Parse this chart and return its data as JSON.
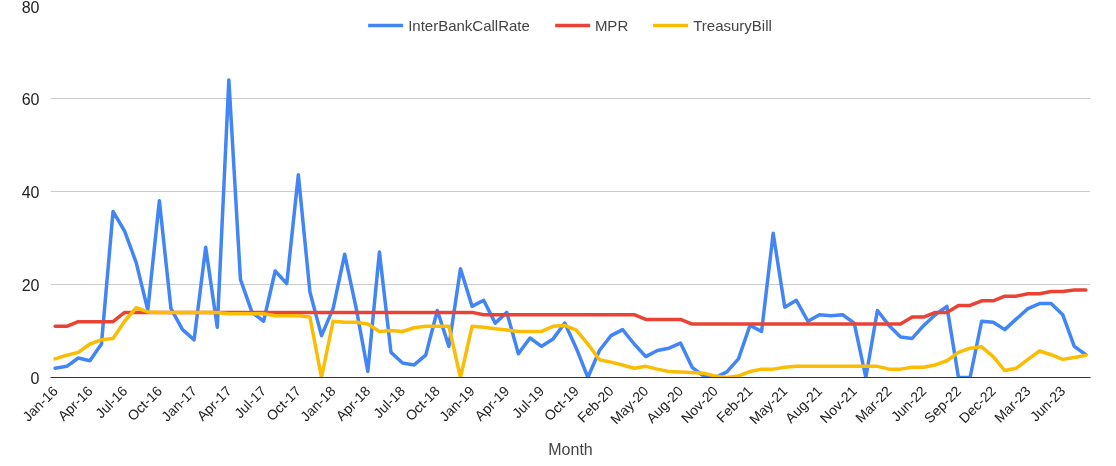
{
  "chart_data": {
    "type": "line",
    "xlabel": "Month",
    "categories": [
      "Jan-16",
      null,
      null,
      "Apr-16",
      null,
      null,
      "Jul-16",
      null,
      null,
      "Oct-16",
      null,
      null,
      "Jan-17",
      null,
      null,
      "Apr-17",
      null,
      null,
      "Jul-17",
      null,
      null,
      "Oct-17",
      null,
      null,
      "Jan-18",
      null,
      null,
      "Apr-18",
      null,
      null,
      "Jul-18",
      null,
      null,
      "Oct-18",
      null,
      null,
      "Jan-19",
      null,
      null,
      "Apr-19",
      null,
      null,
      "Jul-19",
      null,
      null,
      "Oct-19",
      null,
      null,
      "Feb-20",
      null,
      null,
      "May-20",
      null,
      null,
      "Aug-20",
      null,
      null,
      "Nov-20",
      null,
      null,
      "Feb-21",
      null,
      null,
      "May-21",
      null,
      null,
      "Aug-21",
      null,
      null,
      "Nov-21",
      null,
      null,
      "Mar-22",
      null,
      null,
      "Jun-22",
      null,
      null,
      "Sep-22",
      null,
      null,
      "Dec-22",
      null,
      null,
      "Mar-23",
      null,
      null,
      "Jun-23",
      null,
      null
    ],
    "series": [
      {
        "name": "InterBankCallRate",
        "color": "#4285f4",
        "values": [
          2,
          2.4,
          4.2,
          3.6,
          7.2,
          35.7,
          31.5,
          24.7,
          14.5,
          38,
          14.8,
          10.3,
          8.1,
          28,
          10.8,
          64,
          21.1,
          14,
          12.1,
          22.9,
          20.2,
          43.6,
          18.4,
          9,
          14.8,
          26.5,
          14.8,
          1.3,
          27,
          5.4,
          3.1,
          2.7,
          4.8,
          14.4,
          6.7,
          23.4,
          15.3,
          16.6,
          11.7,
          14,
          5.1,
          8.5,
          6.7,
          8.3,
          11.7,
          6.3,
          0,
          5.8,
          9,
          10.3,
          7.2,
          4.5,
          5.8,
          6.3,
          7.4,
          2.2,
          0.3,
          0,
          1.2,
          4,
          11.2,
          9.9,
          31,
          15.1,
          16.6,
          12.1,
          13.5,
          13.3,
          13.5,
          11.7,
          0,
          14.4,
          11.2,
          8.7,
          8.4,
          11.2,
          13.5,
          15.3,
          0,
          0,
          12.1,
          11.9,
          10.3,
          12.6,
          14.8,
          15.9,
          15.9,
          13.5,
          6.7,
          4.9
        ]
      },
      {
        "name": "MPR",
        "color": "#ea4335",
        "values": [
          11,
          11,
          12,
          12,
          12,
          12,
          14,
          14,
          14,
          14,
          14,
          14,
          14,
          14,
          14,
          14,
          14,
          14,
          14,
          14,
          14,
          14,
          14,
          14,
          14,
          14,
          14,
          14,
          14,
          14,
          14,
          14,
          14,
          14,
          14,
          14,
          14,
          13.5,
          13.5,
          13.5,
          13.5,
          13.5,
          13.5,
          13.5,
          13.5,
          13.5,
          13.5,
          13.5,
          13.5,
          13.5,
          13.5,
          12.5,
          12.5,
          12.5,
          12.5,
          11.5,
          11.5,
          11.5,
          11.5,
          11.5,
          11.5,
          11.5,
          11.5,
          11.5,
          11.5,
          11.5,
          11.5,
          11.5,
          11.5,
          11.5,
          11.5,
          11.5,
          11.5,
          11.5,
          13,
          13,
          14,
          14,
          15.5,
          15.5,
          16.5,
          16.5,
          17.5,
          17.5,
          18,
          18,
          18.5,
          18.5,
          18.8,
          18.8
        ]
      },
      {
        "name": "TreasuryBill",
        "color": "#fbbc04",
        "values": [
          4,
          4.8,
          5.4,
          7.2,
          8.1,
          8.4,
          12.1,
          15,
          14.1,
          14,
          14,
          14,
          14,
          14,
          14,
          13.7,
          13.7,
          13.7,
          13.7,
          13.3,
          13.3,
          13.3,
          13,
          0,
          12.1,
          11.9,
          11.9,
          11.5,
          9.9,
          10.1,
          9.9,
          10.7,
          11,
          11,
          11,
          0,
          11,
          10.8,
          10.5,
          10.2,
          9.9,
          9.9,
          9.9,
          11,
          11.2,
          10.2,
          7.2,
          3.8,
          3.3,
          2.7,
          2,
          2.4,
          1.8,
          1.3,
          1.2,
          1.1,
          0.9,
          0.3,
          0,
          0.3,
          1.3,
          1.8,
          1.8,
          2.2,
          2.4,
          2.4,
          2.4,
          2.4,
          2.4,
          2.4,
          2.4,
          2.4,
          1.8,
          1.8,
          2.2,
          2.2,
          2.7,
          3.6,
          5.4,
          6.3,
          6.6,
          4.5,
          1.5,
          2,
          3.9,
          5.7,
          4.9,
          3.9,
          4.3,
          4.8
        ]
      }
    ],
    "ylim": [
      0,
      80
    ],
    "yticks": [
      0,
      20,
      40,
      60,
      80
    ],
    "grid": "y",
    "legend": "top"
  }
}
